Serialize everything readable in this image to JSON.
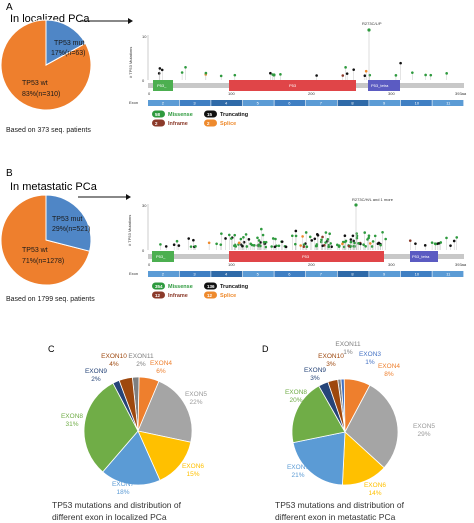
{
  "panelA": {
    "letter": "A",
    "title": "In localized PCa",
    "pie": {
      "mut_label": "TP53 mut",
      "mut_pct": "17%(n=63)",
      "wt_label": "TP53 wt",
      "wt_pct": "83%(n=310)",
      "mut_fraction": 0.17,
      "colors": {
        "mut": "#4f86c6",
        "wt": "#ee7f2d"
      }
    },
    "based_on": "Based on 373 seq. patients",
    "lollipop": {
      "ylabel": "# TP53 Mutations",
      "ytick_top": "10",
      "ytick_bottom": "0",
      "hotspot": "R273C/L/P",
      "domains": [
        "P53_",
        "P53",
        "P53_tetra"
      ],
      "xticks": [
        "0",
        "100",
        "200",
        "300",
        "393aa"
      ],
      "exon_label": "Exon",
      "exons": [
        "2",
        "3",
        "4",
        "5",
        "6",
        "7",
        "8",
        "9",
        "10",
        "11"
      ],
      "legend": [
        {
          "count": "58",
          "label": "Missense",
          "color": "#2e9a3e"
        },
        {
          "count": "15",
          "label": "Truncating",
          "color": "#111111"
        },
        {
          "count": "2",
          "label": "Inframe",
          "color": "#8b3a2a"
        },
        {
          "count": "2",
          "label": "Splice",
          "color": "#ee8a2d"
        }
      ]
    }
  },
  "panelB": {
    "letter": "B",
    "title": "In metastatic PCa",
    "pie": {
      "mut_label": "TP53 mut",
      "mut_pct": "29%(n=521)",
      "wt_label": "TP53 wt",
      "wt_pct": "71%(n=1278)",
      "mut_fraction": 0.29,
      "colors": {
        "mut": "#4f86c6",
        "wt": "#ee7f2d"
      }
    },
    "based_on": "Based on 1799 seq. patients",
    "lollipop": {
      "ylabel": "# TP53 Mutations",
      "ytick_top": "30",
      "ytick_bottom": "0",
      "hotspot": "R273C/H/L and 1 more",
      "domains": [
        "P53_",
        "P53",
        "P53_tetra"
      ],
      "xticks": [
        "0",
        "100",
        "200",
        "300",
        "393aa"
      ],
      "exon_label": "Exon",
      "exons": [
        "2",
        "3",
        "4",
        "5",
        "6",
        "7",
        "8",
        "9",
        "10",
        "11"
      ],
      "legend": [
        {
          "count": "354",
          "label": "Missense",
          "color": "#2e9a3e"
        },
        {
          "count": "136",
          "label": "Truncating",
          "color": "#111111"
        },
        {
          "count": "12",
          "label": "Inframe",
          "color": "#8b3a2a"
        },
        {
          "count": "12",
          "label": "Splice",
          "color": "#ee8a2d"
        }
      ]
    }
  },
  "panelC": {
    "letter": "C",
    "caption_line1": "TP53 mutations and distribution of",
    "caption_line2": "different exon in localized PCa",
    "slices": [
      {
        "name": "EXON11",
        "pct": "2%",
        "value": 2,
        "color": "#7f7f7f"
      },
      {
        "name": "EXON4",
        "pct": "6%",
        "value": 6,
        "color": "#ee7f2d"
      },
      {
        "name": "EXON5",
        "pct": "22%",
        "value": 22,
        "color": "#a5a5a5"
      },
      {
        "name": "EXON6",
        "pct": "15%",
        "value": 15,
        "color": "#ffc000"
      },
      {
        "name": "EXON7",
        "pct": "18%",
        "value": 18,
        "color": "#5b9bd5"
      },
      {
        "name": "EXON8",
        "pct": "31%",
        "value": 31,
        "color": "#70ad47"
      },
      {
        "name": "EXON9",
        "pct": "2%",
        "value": 2,
        "color": "#264478"
      },
      {
        "name": "EXON10",
        "pct": "4%",
        "value": 4,
        "color": "#9e480e"
      }
    ]
  },
  "panelD": {
    "letter": "D",
    "caption_line1": "TP53 mutations and distribution of",
    "caption_line2": "different exon  in metastatic PCa",
    "slices": [
      {
        "name": "EXON11",
        "pct": "1%",
        "value": 1,
        "color": "#7f7f7f"
      },
      {
        "name": "EXON3",
        "pct": "1%",
        "value": 1,
        "color": "#4472c4"
      },
      {
        "name": "EXON4",
        "pct": "8%",
        "value": 8,
        "color": "#ee7f2d"
      },
      {
        "name": "EXON5",
        "pct": "29%",
        "value": 29,
        "color": "#a5a5a5"
      },
      {
        "name": "EXON6",
        "pct": "14%",
        "value": 14,
        "color": "#ffc000"
      },
      {
        "name": "EXON7",
        "pct": "21%",
        "value": 21,
        "color": "#5b9bd5"
      },
      {
        "name": "EXON8",
        "pct": "20%",
        "value": 20,
        "color": "#70ad47"
      },
      {
        "name": "EXON9",
        "pct": "3%",
        "value": 3,
        "color": "#264478"
      },
      {
        "name": "EXON10",
        "pct": "3%",
        "value": 3,
        "color": "#9e480e"
      }
    ]
  }
}
